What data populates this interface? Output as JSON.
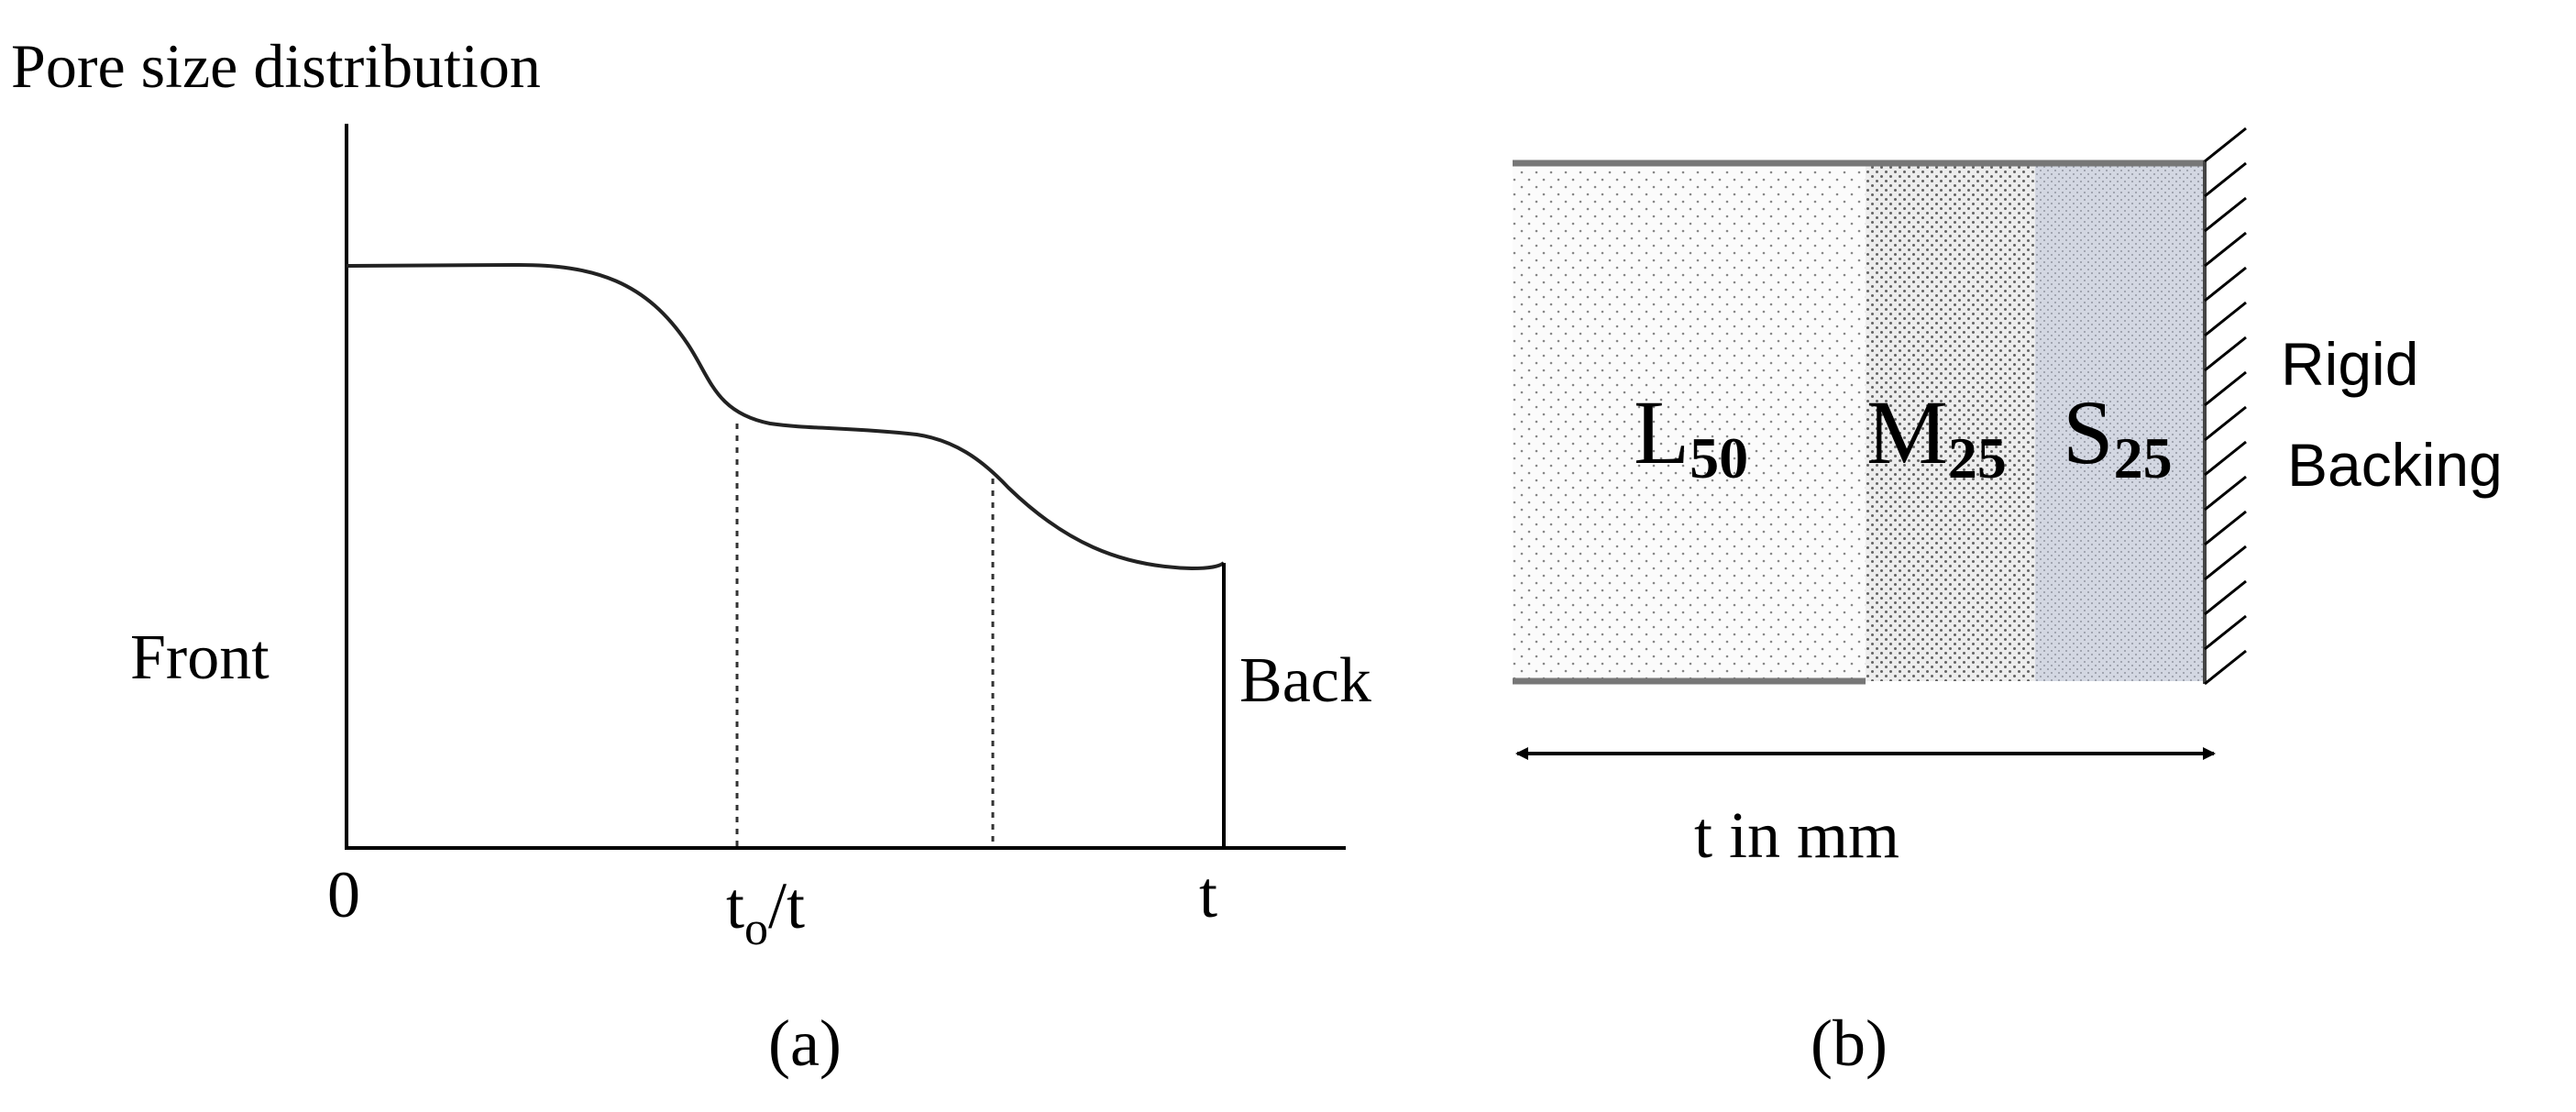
{
  "panel_a": {
    "y_axis_title": "Pore size distribution",
    "front_label": "Front",
    "back_label": "Back",
    "x_ticks": {
      "origin": "0",
      "middle_main": "t",
      "middle_sub": "o",
      "middle_tail": "/t",
      "end": "t"
    },
    "caption": "(a)"
  },
  "panel_b": {
    "layers": [
      {
        "letter": "L",
        "subscript": "50",
        "fill": "#fafafa"
      },
      {
        "letter": "M",
        "subscript": "25",
        "fill": "#e6e6e6"
      },
      {
        "letter": "S",
        "subscript": "25",
        "fill": "#d3d7e2"
      }
    ],
    "backing_label_line1": "Rigid",
    "backing_label_line2": "Backing",
    "thickness_label": "t in mm",
    "caption": "(b)"
  }
}
